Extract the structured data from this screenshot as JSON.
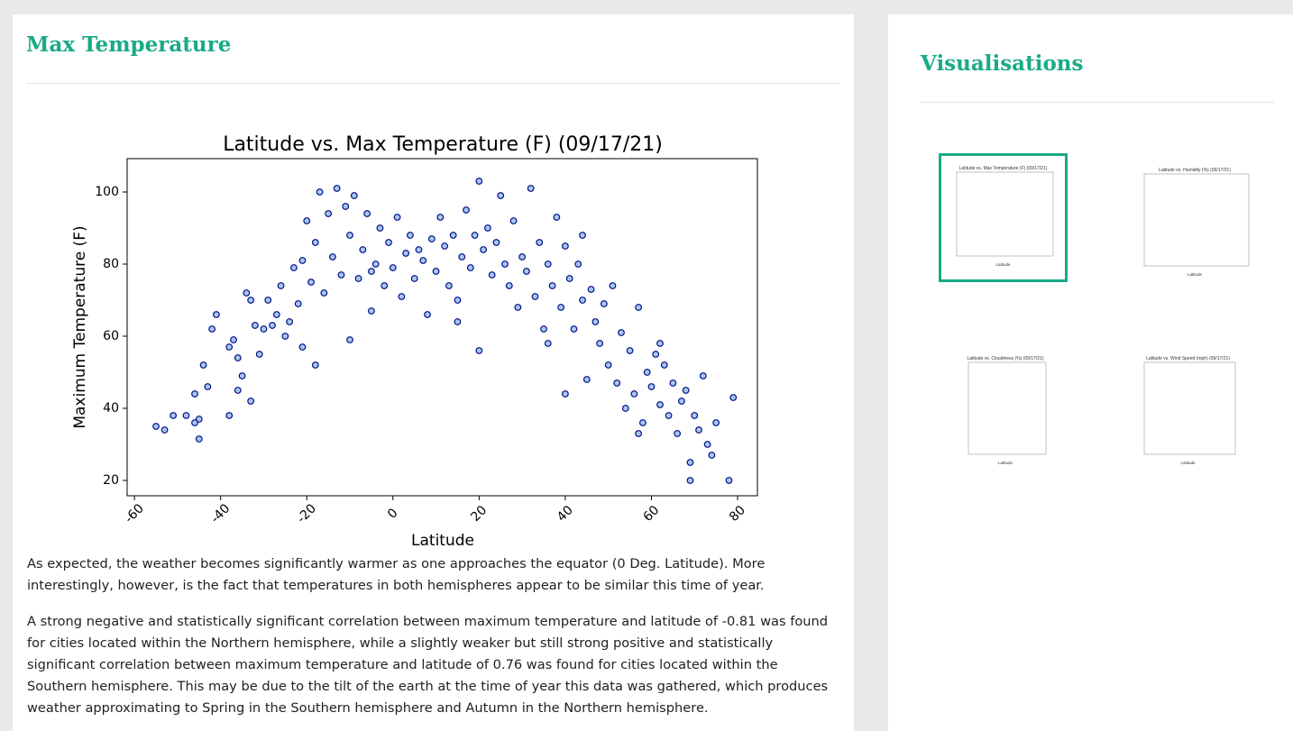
{
  "header": {
    "title": "Max Temperature"
  },
  "chart_data": {
    "type": "scatter",
    "title": "Latitude vs. Max Temperature (F) (09/17/21)",
    "xlabel": "Latitude",
    "ylabel": "Maximum Temperature (F)",
    "color": "#a9c6ec",
    "edgecolor": "#00108a",
    "xlim": [
      -61.7,
      84.6
    ],
    "ylim": [
      15.75,
      109.25
    ],
    "xticks": [
      -60,
      -40,
      -20,
      0,
      20,
      40,
      60,
      80
    ],
    "yticks": [
      20,
      40,
      60,
      80,
      100
    ],
    "x": [
      -55,
      -53,
      -51,
      -48,
      -46,
      -46,
      -45,
      -45,
      -44,
      -43,
      -42,
      -41,
      -38,
      -38,
      -37,
      -36,
      -36,
      -35,
      -34,
      -33,
      -33,
      -32,
      -31,
      -30,
      -29,
      -28,
      -27,
      -26,
      -25,
      -24,
      -23,
      -22,
      -21,
      -21,
      -20,
      -19,
      -18,
      -18,
      -17,
      -16,
      -15,
      -14,
      -13,
      -12,
      -11,
      -10,
      -10,
      -9,
      -8,
      -7,
      -6,
      -5,
      -5,
      -4,
      -3,
      -2,
      -1,
      0,
      1,
      2,
      3,
      4,
      5,
      6,
      7,
      8,
      9,
      10,
      11,
      12,
      13,
      14,
      15,
      15,
      16,
      17,
      18,
      19,
      20,
      20,
      21,
      22,
      23,
      24,
      25,
      26,
      27,
      28,
      29,
      30,
      31,
      32,
      33,
      34,
      35,
      36,
      36,
      37,
      38,
      39,
      40,
      40,
      41,
      42,
      43,
      44,
      44,
      45,
      46,
      47,
      48,
      49,
      50,
      51,
      52,
      53,
      54,
      55,
      56,
      57,
      57,
      58,
      59,
      60,
      61,
      62,
      62,
      63,
      64,
      65,
      66,
      67,
      68,
      69,
      69,
      70,
      71,
      72,
      73,
      74,
      75,
      78,
      79
    ],
    "values": [
      35,
      34,
      38,
      38,
      36,
      44,
      37,
      31.5,
      52,
      46,
      62,
      66,
      38,
      57,
      59,
      54,
      45,
      49,
      72,
      70,
      42,
      63,
      55,
      62,
      70,
      63,
      66,
      74,
      60,
      64,
      79,
      69,
      81,
      57,
      92,
      75,
      86,
      52,
      100,
      72,
      94,
      82,
      101,
      77,
      96,
      88,
      59,
      99,
      76,
      84,
      94,
      78,
      67,
      80,
      90,
      74,
      86,
      79,
      93,
      71,
      83,
      88,
      76,
      84,
      81,
      66,
      87,
      78,
      93,
      85,
      74,
      88,
      70,
      64,
      82,
      95,
      79,
      88,
      56,
      103,
      84,
      90,
      77,
      86,
      99,
      80,
      74,
      92,
      68,
      82,
      78,
      101,
      71,
      86,
      62,
      80,
      58,
      74,
      93,
      68,
      85,
      44,
      76,
      62,
      80,
      70,
      88,
      48,
      73,
      64,
      58,
      69,
      52,
      74,
      47,
      61,
      40,
      56,
      44,
      68,
      33,
      36,
      50,
      46,
      55,
      41,
      58,
      52,
      38,
      47,
      33,
      42,
      45,
      20,
      25,
      38,
      34,
      49,
      30,
      27,
      36,
      20,
      43
    ]
  },
  "text": {
    "paragraphs": [
      "As expected, the weather becomes significantly warmer as one approaches the equator (0 Deg. Latitude). More interestingly, however, is the fact that temperatures in both hemispheres appear to be similar this time of year.",
      "A strong negative and statistically significant correlation between maximum temperature and latitude of -0.81 was found for cities located within the Northern hemisphere, while a slightly weaker but still strong positive and statistically significant correlation between maximum temperature and latitude of 0.76 was found for cities located within the Southern hemisphere. This may be due to the tilt of the earth at the time of year this data was gathered, which produces weather approximating to Spring in the Southern hemisphere and Autumn in the Northern hemisphere."
    ]
  },
  "sidebar": {
    "title": "Visualisations",
    "thumbnails": [
      {
        "title": "Latitude vs. Max Temperature (F) (09/17/21)",
        "xlabel": "Latitude"
      },
      {
        "title": "Latitude vs. Humidity (%) (09/17/21)",
        "xlabel": "Latitude"
      },
      {
        "title": "Latitude vs. Cloudiness (%) (09/17/21)",
        "xlabel": "Latitude"
      },
      {
        "title": "Latitude vs. Wind Speed (mph) (09/17/21)",
        "xlabel": "Latitude"
      }
    ]
  }
}
